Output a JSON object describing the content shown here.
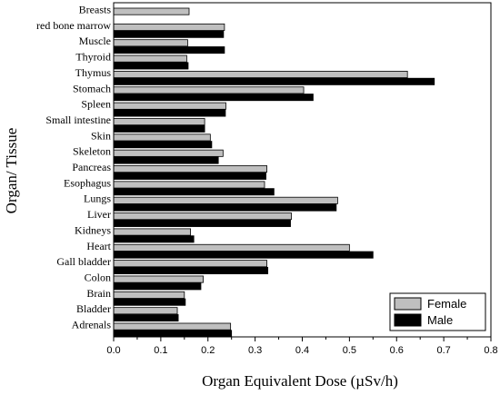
{
  "chart_data": {
    "type": "bar",
    "orientation": "horizontal",
    "categories": [
      "Breasts",
      "red bone marrow",
      "Muscle",
      "Thyroid",
      "Thymus",
      "Stomach",
      "Spleen",
      "Small intestine",
      "Skin",
      "Skeleton",
      "Pancreas",
      "Esophagus",
      "Lungs",
      "Liver",
      "Kidneys",
      "Heart",
      "Gall bladder",
      "Colon",
      "Brain",
      "Bladder",
      "Adrenals"
    ],
    "series": [
      {
        "name": "Female",
        "color": "#bfbfbf",
        "values": [
          0.16,
          0.235,
          0.157,
          0.155,
          0.623,
          0.403,
          0.238,
          0.193,
          0.205,
          0.232,
          0.325,
          0.32,
          0.475,
          0.377,
          0.163,
          0.5,
          0.325,
          0.19,
          0.15,
          0.135,
          0.248
        ]
      },
      {
        "name": "Male",
        "color": "#000000",
        "values": [
          null,
          0.233,
          0.235,
          0.158,
          0.68,
          0.423,
          0.237,
          0.193,
          0.208,
          0.222,
          0.323,
          0.34,
          0.472,
          0.375,
          0.17,
          0.55,
          0.327,
          0.185,
          0.152,
          0.137,
          0.25
        ]
      }
    ],
    "xlabel": "Organ Equivalent Dose  (µSv/h)",
    "ylabel": "Organ/ Tissue",
    "xlim": [
      0,
      0.8
    ],
    "xticks": [
      "0.0",
      "0.1",
      "0.2",
      "0.3",
      "0.4",
      "0.5",
      "0.6",
      "0.7",
      "0.8"
    ],
    "grid": false,
    "legend_position": "bottom-right"
  }
}
